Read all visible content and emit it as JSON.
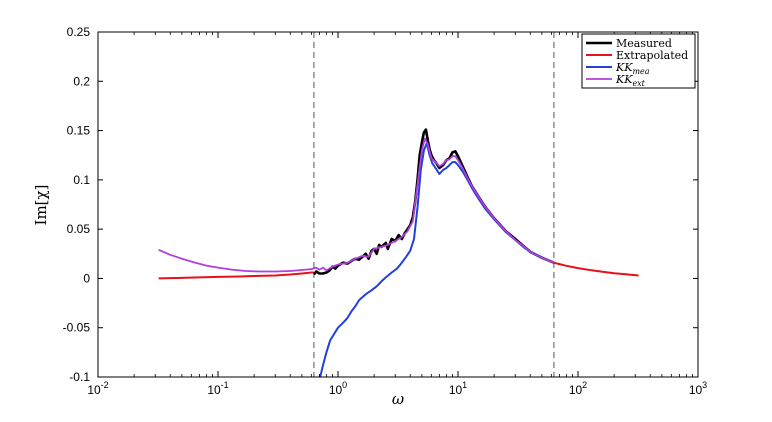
{
  "chart_data": {
    "type": "line",
    "xlabel": "ω",
    "ylabel": "Im[χ]",
    "x_scale": "log",
    "xlim": [
      0.01,
      1000
    ],
    "ylim": [
      -0.1,
      0.25
    ],
    "grid": false,
    "legend_position": "top-right",
    "x_ticks": [
      {
        "value": 0.01,
        "base": "10",
        "exp": "-2"
      },
      {
        "value": 0.1,
        "base": "10",
        "exp": "-1"
      },
      {
        "value": 1,
        "base": "10",
        "exp": "0"
      },
      {
        "value": 10,
        "base": "10",
        "exp": "1"
      },
      {
        "value": 100,
        "base": "10",
        "exp": "2"
      },
      {
        "value": 1000,
        "base": "10",
        "exp": "3"
      }
    ],
    "y_ticks": [
      "-0.1",
      "-0.05",
      "0",
      "0.05",
      "0.1",
      "0.15",
      "0.2",
      "0.25"
    ],
    "vlines": [
      0.63,
      63
    ],
    "series": [
      {
        "name": "Measured",
        "legend_main": "Measured",
        "legend_sub": "",
        "color": "#000000",
        "width": 2.6,
        "points": [
          [
            0.63,
            0.004
          ],
          [
            0.66,
            0.007
          ],
          [
            0.7,
            0.005
          ],
          [
            0.75,
            0.005
          ],
          [
            0.8,
            0.006
          ],
          [
            0.85,
            0.008
          ],
          [
            0.9,
            0.012
          ],
          [
            0.95,
            0.01
          ],
          [
            1.0,
            0.013
          ],
          [
            1.1,
            0.016
          ],
          [
            1.2,
            0.015
          ],
          [
            1.3,
            0.018
          ],
          [
            1.4,
            0.02
          ],
          [
            1.5,
            0.019
          ],
          [
            1.6,
            0.022
          ],
          [
            1.7,
            0.025
          ],
          [
            1.8,
            0.02
          ],
          [
            1.9,
            0.028
          ],
          [
            2.0,
            0.03
          ],
          [
            2.1,
            0.025
          ],
          [
            2.2,
            0.034
          ],
          [
            2.3,
            0.032
          ],
          [
            2.5,
            0.036
          ],
          [
            2.6,
            0.03
          ],
          [
            2.8,
            0.04
          ],
          [
            3.0,
            0.038
          ],
          [
            3.2,
            0.044
          ],
          [
            3.4,
            0.04
          ],
          [
            3.6,
            0.046
          ],
          [
            3.8,
            0.05
          ],
          [
            4.0,
            0.054
          ],
          [
            4.2,
            0.062
          ],
          [
            4.4,
            0.078
          ],
          [
            4.6,
            0.1
          ],
          [
            4.8,
            0.125
          ],
          [
            5.0,
            0.138
          ],
          [
            5.2,
            0.148
          ],
          [
            5.4,
            0.151
          ],
          [
            5.6,
            0.14
          ],
          [
            5.8,
            0.131
          ],
          [
            6.0,
            0.125
          ],
          [
            6.3,
            0.12
          ],
          [
            6.6,
            0.117
          ],
          [
            7.0,
            0.112
          ],
          [
            7.5,
            0.115
          ],
          [
            8.0,
            0.12
          ],
          [
            8.5,
            0.122
          ],
          [
            9.0,
            0.128
          ],
          [
            9.5,
            0.129
          ],
          [
            10,
            0.124
          ],
          [
            11,
            0.113
          ],
          [
            12,
            0.103
          ],
          [
            13,
            0.094
          ],
          [
            15,
            0.082
          ],
          [
            17,
            0.072
          ],
          [
            20,
            0.061
          ],
          [
            25,
            0.048
          ],
          [
            30,
            0.04
          ],
          [
            35,
            0.033
          ],
          [
            40,
            0.027
          ],
          [
            50,
            0.021
          ],
          [
            63,
            0.016
          ]
        ]
      },
      {
        "name": "Extrapolated",
        "legend_main": "Extrapolated",
        "legend_sub": "",
        "color": "#e8101a",
        "width": 2.0,
        "points": [
          [
            0.032,
            0.0
          ],
          [
            0.05,
            0.0005
          ],
          [
            0.07,
            0.001
          ],
          [
            0.1,
            0.0015
          ],
          [
            0.15,
            0.002
          ],
          [
            0.2,
            0.0025
          ],
          [
            0.3,
            0.003
          ],
          [
            0.4,
            0.004
          ],
          [
            0.5,
            0.005
          ],
          [
            0.6,
            0.006
          ],
          [
            0.63,
            0.006
          ],
          [
            0.65,
            null
          ],
          [
            63,
            0.016
          ],
          [
            70,
            0.0145
          ],
          [
            80,
            0.0128
          ],
          [
            100,
            0.0105
          ],
          [
            130,
            0.0082
          ],
          [
            160,
            0.0068
          ],
          [
            200,
            0.0053
          ],
          [
            250,
            0.0042
          ],
          [
            320,
            0.003
          ]
        ]
      },
      {
        "name": "KK_mea",
        "legend_main": "KK",
        "legend_sub": "mea",
        "color": "#2040d8",
        "width": 2.0,
        "points": [
          [
            0.71,
            -0.1
          ],
          [
            0.75,
            -0.088
          ],
          [
            0.8,
            -0.075
          ],
          [
            0.86,
            -0.063
          ],
          [
            0.92,
            -0.057
          ],
          [
            1.0,
            -0.05
          ],
          [
            1.1,
            -0.045
          ],
          [
            1.2,
            -0.04
          ],
          [
            1.3,
            -0.033
          ],
          [
            1.4,
            -0.028
          ],
          [
            1.5,
            -0.022
          ],
          [
            1.7,
            -0.016
          ],
          [
            1.9,
            -0.012
          ],
          [
            2.1,
            -0.008
          ],
          [
            2.3,
            -0.003
          ],
          [
            2.5,
            0.001
          ],
          [
            2.8,
            0.006
          ],
          [
            3.1,
            0.01
          ],
          [
            3.4,
            0.016
          ],
          [
            3.7,
            0.022
          ],
          [
            4.0,
            0.028
          ],
          [
            4.3,
            0.04
          ],
          [
            4.6,
            0.072
          ],
          [
            4.9,
            0.11
          ],
          [
            5.2,
            0.13
          ],
          [
            5.5,
            0.137
          ],
          [
            5.8,
            0.125
          ],
          [
            6.1,
            0.117
          ],
          [
            6.5,
            0.112
          ],
          [
            7.0,
            0.106
          ],
          [
            7.5,
            0.11
          ],
          [
            8.0,
            0.112
          ],
          [
            8.5,
            0.115
          ],
          [
            9.0,
            0.118
          ],
          [
            9.5,
            0.118
          ],
          [
            10,
            0.115
          ],
          [
            11,
            0.108
          ],
          [
            12,
            0.1
          ],
          [
            13,
            0.092
          ],
          [
            15,
            0.08
          ],
          [
            17,
            0.07
          ],
          [
            20,
            0.06
          ],
          [
            25,
            0.047
          ],
          [
            30,
            0.039
          ],
          [
            35,
            0.032
          ],
          [
            40,
            0.027
          ],
          [
            50,
            0.021
          ],
          [
            63,
            0.016
          ]
        ]
      },
      {
        "name": "KK_ext",
        "legend_main": "KK",
        "legend_sub": "ext",
        "color": "#b23de0",
        "width": 1.8,
        "points": [
          [
            0.032,
            0.029
          ],
          [
            0.04,
            0.024
          ],
          [
            0.05,
            0.02
          ],
          [
            0.065,
            0.016
          ],
          [
            0.08,
            0.013
          ],
          [
            0.1,
            0.011
          ],
          [
            0.13,
            0.009
          ],
          [
            0.17,
            0.0075
          ],
          [
            0.22,
            0.007
          ],
          [
            0.3,
            0.007
          ],
          [
            0.4,
            0.0075
          ],
          [
            0.5,
            0.0085
          ],
          [
            0.6,
            0.0095
          ],
          [
            0.65,
            0.011
          ],
          [
            0.7,
            0.009
          ],
          [
            0.75,
            0.011
          ],
          [
            0.8,
            0.008
          ],
          [
            0.9,
            0.012
          ],
          [
            1.0,
            0.014
          ],
          [
            1.2,
            0.016
          ],
          [
            1.4,
            0.02
          ],
          [
            1.6,
            0.023
          ],
          [
            1.8,
            0.022
          ],
          [
            2.0,
            0.03
          ],
          [
            2.3,
            0.032
          ],
          [
            2.6,
            0.034
          ],
          [
            3.0,
            0.038
          ],
          [
            3.4,
            0.042
          ],
          [
            3.8,
            0.048
          ],
          [
            4.2,
            0.058
          ],
          [
            4.6,
            0.095
          ],
          [
            5.0,
            0.13
          ],
          [
            5.3,
            0.142
          ],
          [
            5.6,
            0.136
          ],
          [
            6.0,
            0.122
          ],
          [
            6.5,
            0.118
          ],
          [
            7.0,
            0.114
          ],
          [
            7.5,
            0.116
          ],
          [
            8.0,
            0.12
          ],
          [
            8.5,
            0.121
          ],
          [
            9.0,
            0.124
          ],
          [
            9.5,
            0.124
          ],
          [
            10,
            0.12
          ],
          [
            11,
            0.111
          ],
          [
            12,
            0.102
          ],
          [
            13,
            0.094
          ],
          [
            15,
            0.082
          ],
          [
            17,
            0.072
          ],
          [
            20,
            0.061
          ],
          [
            25,
            0.048
          ],
          [
            30,
            0.039
          ],
          [
            35,
            0.033
          ],
          [
            40,
            0.027
          ],
          [
            50,
            0.021
          ],
          [
            63,
            0.016
          ]
        ]
      }
    ]
  }
}
